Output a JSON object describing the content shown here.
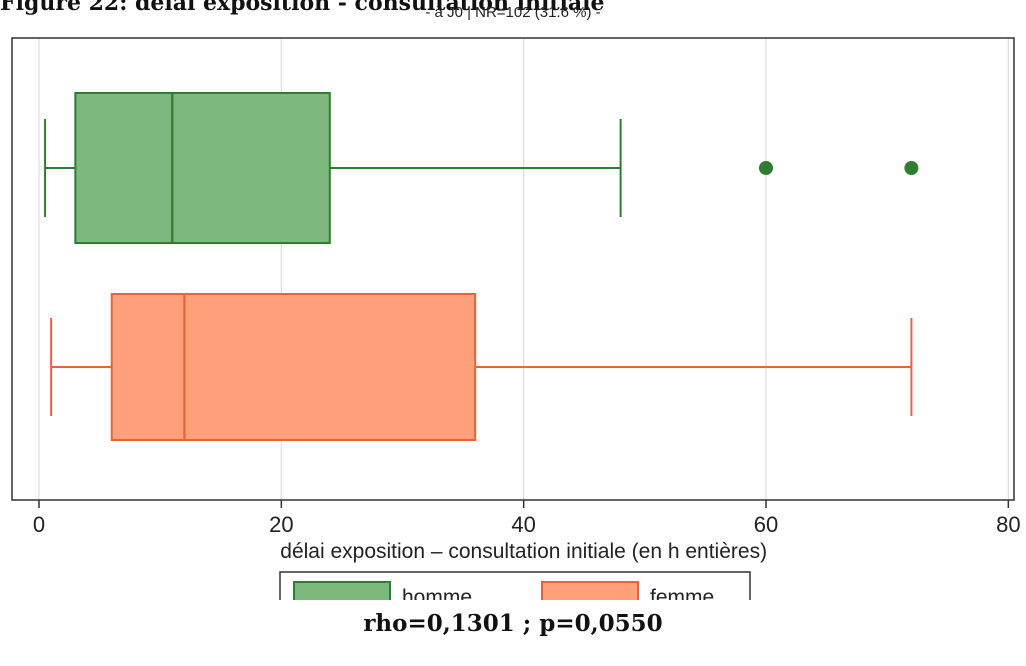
{
  "figure_title": "Figure 22: délai exposition - consultation initiale",
  "stats_text": "rho=0,1301 ; p=0,0550",
  "chart_data": {
    "type": "boxplot",
    "orientation": "horizontal",
    "title": "",
    "subtitle": "- à J0 | NR=102 (31.6 %) -",
    "xlabel": "délai exposition – consultation initiale (en h entières)",
    "ylabel": "",
    "xlim": [
      -5,
      80
    ],
    "xticks": [
      0,
      20,
      40,
      60,
      80
    ],
    "grid": true,
    "legend_position": "bottom",
    "series": [
      {
        "name": "homme",
        "color_fill": "#7db87d",
        "color_line": "#2e7d32",
        "whisker_low": 0.5,
        "q1": 3,
        "median": 11,
        "q3": 24,
        "whisker_high": 48,
        "outliers": [
          60,
          72
        ]
      },
      {
        "name": "femme",
        "color_fill": "#ffa07a",
        "color_line": "#e8633a",
        "whisker_low": 1,
        "q1": 6,
        "median": 12,
        "q3": 36,
        "whisker_high": 72,
        "outliers": []
      }
    ]
  }
}
